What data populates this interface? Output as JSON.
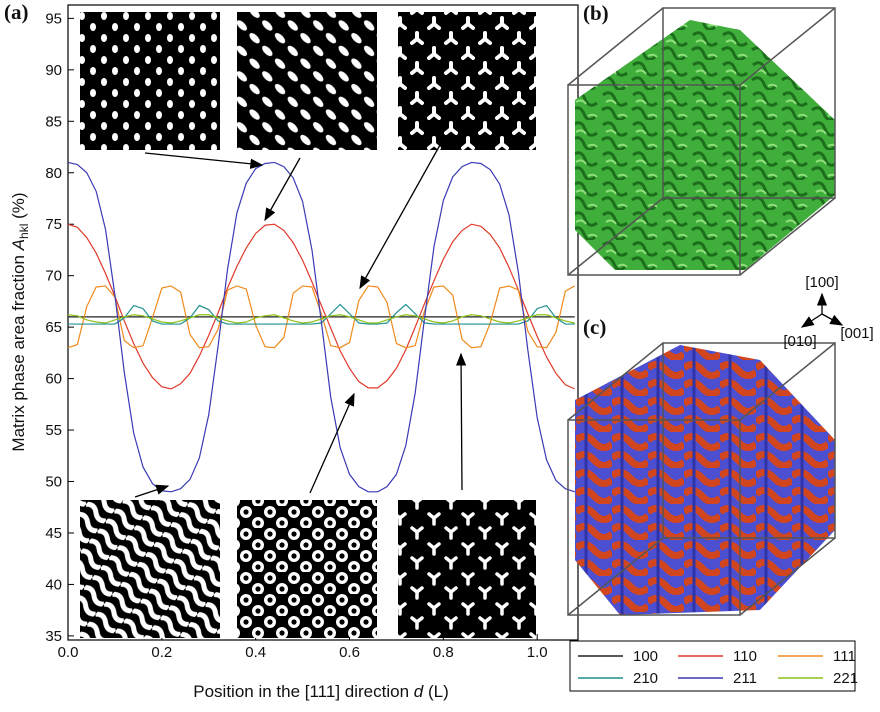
{
  "chart_data": {
    "type": "line",
    "x_label": {
      "text": "Position in the [111] direction",
      "symbol": "d",
      "unit": "(L)"
    },
    "y_label": {
      "text": "Matrix phase area fraction",
      "symbol": "A",
      "subscript": "hkl",
      "unit": "(%)"
    },
    "x": [
      0,
      0.02,
      0.04,
      0.06,
      0.08,
      0.1,
      0.12,
      0.14,
      0.16,
      0.18,
      0.2,
      0.22,
      0.24,
      0.26,
      0.28,
      0.3,
      0.32,
      0.34,
      0.36,
      0.38,
      0.4,
      0.42,
      0.44,
      0.46,
      0.48,
      0.5,
      0.52,
      0.54,
      0.56,
      0.58,
      0.6,
      0.62,
      0.64,
      0.66,
      0.68,
      0.7,
      0.72,
      0.74,
      0.76,
      0.78,
      0.8,
      0.82,
      0.84,
      0.86,
      0.88,
      0.9,
      0.92,
      0.94,
      0.96,
      0.98,
      1.0,
      1.02,
      1.04,
      1.06,
      1.08
    ],
    "series": [
      {
        "name": "100",
        "color": "#222222",
        "values": [
          66,
          66,
          66,
          66,
          66,
          66,
          66,
          66,
          66,
          66,
          66,
          66,
          66,
          66,
          66,
          66,
          66,
          66,
          66,
          66,
          66,
          66,
          66,
          66,
          66,
          66,
          66,
          66,
          66,
          66,
          66,
          66,
          66,
          66,
          66,
          66,
          66,
          66,
          66,
          66,
          66,
          66,
          66,
          66,
          66,
          66,
          66,
          66,
          66,
          66,
          66,
          66,
          66,
          66,
          66
        ]
      },
      {
        "name": "110",
        "color": "#e0392b",
        "values": [
          75,
          74.7,
          73.7,
          72.2,
          70.2,
          68.0,
          65.6,
          63.4,
          61.5,
          60.1,
          59.2,
          59.0,
          59.5,
          60.5,
          62.2,
          64.2,
          66.4,
          68.8,
          70.9,
          72.7,
          74.1,
          74.9,
          75.0,
          74.4,
          73.2,
          71.5,
          69.4,
          67.1,
          64.9,
          62.7,
          61.0,
          59.7,
          59.1,
          59.1,
          59.8,
          61.0,
          62.8,
          65.0,
          67.3,
          69.5,
          71.6,
          73.3,
          74.4,
          75.0,
          74.8,
          74.0,
          72.7,
          70.8,
          68.6,
          66.3,
          64.1,
          62.1,
          60.5,
          59.4,
          59.0
        ]
      },
      {
        "name": "111",
        "color": "#f08a1c",
        "values": [
          63,
          63.3,
          67.0,
          68.9,
          69.0,
          67.9,
          63.7,
          63.0,
          63.2,
          65.9,
          68.8,
          69.0,
          68.4,
          64.3,
          63.0,
          63.1,
          64.8,
          68.6,
          69.0,
          68.7,
          65.2,
          63.1,
          63.0,
          64.0,
          68.3,
          69.0,
          68.9,
          66.3,
          63.2,
          63.0,
          63.5,
          67.6,
          69.0,
          68.9,
          67.4,
          63.4,
          63.0,
          63.2,
          66.6,
          68.9,
          69.0,
          68.1,
          63.8,
          63.0,
          63.1,
          65.4,
          68.8,
          69.0,
          68.6,
          64.6,
          63.1,
          63.0,
          64.5,
          68.5,
          69.0
        ]
      },
      {
        "name": "210",
        "color": "#1f9090",
        "values": [
          65.3,
          65.3,
          65.3,
          65.3,
          65.3,
          65.3,
          65.9,
          67.1,
          66.8,
          65.6,
          65.3,
          65.3,
          65.3,
          65.9,
          67.1,
          66.7,
          65.6,
          65.3,
          65.3,
          65.3,
          65.3,
          65.3,
          65.3,
          65.3,
          65.3,
          65.3,
          65.3,
          65.4,
          66.3,
          67.2,
          66.3,
          65.4,
          65.3,
          65.3,
          65.4,
          66.4,
          67.2,
          66.3,
          65.4,
          65.3,
          65.3,
          65.3,
          65.3,
          65.3,
          65.3,
          65.3,
          65.3,
          65.3,
          65.3,
          65.6,
          66.8,
          67.1,
          65.9,
          65.3,
          65.3
        ]
      },
      {
        "name": "211",
        "color": "#3a3ab5",
        "values": [
          81,
          80.8,
          80.0,
          78.2,
          74.5,
          68.1,
          60.6,
          54.7,
          51.4,
          49.8,
          49.1,
          49.0,
          49.3,
          50.2,
          52.3,
          56.5,
          63.2,
          70.6,
          76.1,
          79.0,
          80.4,
          80.9,
          81.0,
          80.6,
          79.5,
          77.2,
          72.5,
          65.5,
          58.2,
          53.3,
          50.7,
          49.5,
          49.0,
          49.0,
          49.5,
          50.7,
          53.5,
          58.6,
          65.9,
          72.8,
          77.3,
          79.6,
          80.6,
          81.0,
          80.9,
          80.3,
          78.9,
          75.9,
          70.3,
          62.8,
          56.2,
          52.1,
          50.1,
          49.3,
          49.0
        ]
      },
      {
        "name": "221",
        "color": "#8cc21a",
        "values": [
          66.2,
          66.1,
          65.7,
          65.5,
          65.4,
          65.7,
          66.0,
          66.2,
          66.1,
          65.8,
          65.5,
          65.4,
          65.6,
          65.9,
          66.2,
          66.2,
          65.9,
          65.6,
          65.4,
          65.5,
          65.9,
          66.1,
          66.2,
          65.9,
          65.6,
          65.4,
          65.5,
          65.8,
          66.1,
          66.2,
          66.0,
          65.7,
          65.4,
          65.4,
          65.7,
          66.0,
          66.2,
          66.1,
          65.8,
          65.5,
          65.4,
          65.6,
          66.0,
          66.2,
          66.1,
          65.8,
          65.5,
          65.4,
          65.6,
          65.9,
          66.2,
          66.2,
          65.9,
          65.6,
          65.4
        ]
      }
    ],
    "xlim": [
      0,
      1.087
    ],
    "ylim": [
      34.6,
      96.3
    ],
    "xticks": [
      {
        "value": 0,
        "label": "0.0"
      },
      0.2,
      0.4,
      0.6,
      0.8,
      {
        "value": 1,
        "label": "1.0"
      }
    ],
    "yticks": [
      35,
      40,
      45,
      50,
      55,
      60,
      65,
      70,
      75,
      80,
      85,
      90,
      95
    ]
  },
  "panels": {
    "a": "(a)",
    "b": "(b)",
    "c": "(c)"
  },
  "axes_triad": {
    "up": "[100]",
    "left": "[010]",
    "right": "[001]"
  }
}
